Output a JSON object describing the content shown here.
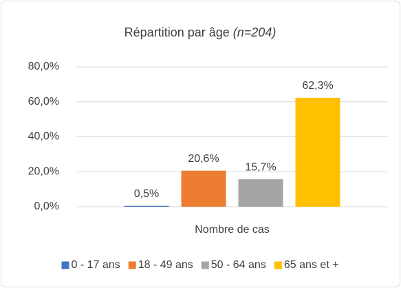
{
  "chart_data": {
    "type": "bar",
    "title": "Répartition par âge",
    "title_note": "(n=204)",
    "categories": [
      "Nombre de cas"
    ],
    "series": [
      {
        "name": "0 - 17 ans",
        "color": "#4472c4",
        "values": [
          0.5
        ],
        "value_labels": [
          "0,5%"
        ]
      },
      {
        "name": "18 - 49 ans",
        "color": "#ed7d31",
        "values": [
          20.6
        ],
        "value_labels": [
          "20,6%"
        ]
      },
      {
        "name": "50 - 64 ans",
        "color": "#a5a5a5",
        "values": [
          15.7
        ],
        "value_labels": [
          "15,7%"
        ]
      },
      {
        "name": "65 ans et +",
        "color": "#ffc000",
        "values": [
          62.3
        ],
        "value_labels": [
          "62,3%"
        ]
      }
    ],
    "ylim": [
      0,
      80
    ],
    "yticks": [
      {
        "value": 0,
        "label": "0,0%"
      },
      {
        "value": 20,
        "label": "20,0%"
      },
      {
        "value": 40,
        "label": "40,0%"
      },
      {
        "value": 60,
        "label": "60,0%"
      },
      {
        "value": 80,
        "label": "80,0%"
      }
    ],
    "grid": true,
    "legend": "bottom"
  }
}
